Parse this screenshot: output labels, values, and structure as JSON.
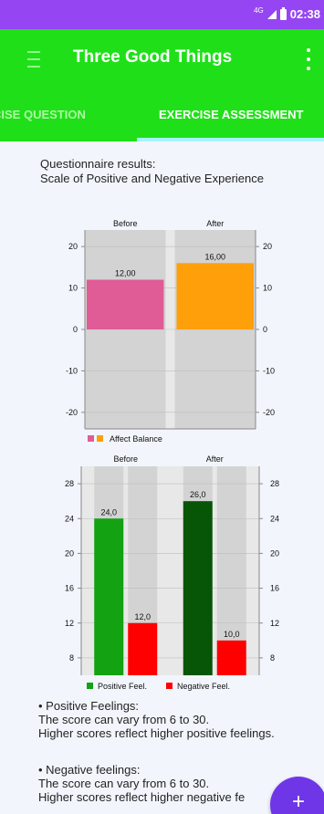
{
  "status_bar": {
    "network": "4G",
    "time": "02:38",
    "icons": [
      "signal-icon",
      "battery-icon"
    ]
  },
  "app_bar": {
    "title": "Three Good Things",
    "menu_icon": "menu-icon",
    "overflow_icon": "more-vert-icon"
  },
  "tabs": [
    {
      "label": "EXERCISE QUESTION",
      "shown_label": "CISE QUESTION",
      "active": false
    },
    {
      "label": "EXERCISE ASSESSMENT",
      "active": true
    }
  ],
  "heading": {
    "line1": "Questionnaire results:",
    "line2": "Scale of Positive and Negative Experience"
  },
  "chart_data": [
    {
      "type": "bar",
      "categories": [
        "Before",
        "After"
      ],
      "series": [
        {
          "name": "Affect Balance",
          "values": [
            12.0,
            16.0
          ],
          "colors": [
            "#e05c96",
            "#ff9f0a"
          ]
        }
      ],
      "value_labels": [
        "12,00",
        "16,00"
      ],
      "ylim": [
        -24,
        24
      ],
      "yticks": [
        -20,
        -10,
        0,
        10,
        20
      ],
      "grid": true,
      "legend": "bottom-left"
    },
    {
      "type": "bar",
      "categories": [
        "Before",
        "After"
      ],
      "series": [
        {
          "name": "Positive Feel.",
          "values": [
            24.0,
            26.0
          ],
          "colors": [
            "#12a212",
            "#075507"
          ]
        },
        {
          "name": "Negative Feel.",
          "values": [
            12.0,
            10.0
          ],
          "colors": [
            "#ff0000",
            "#ff0000"
          ]
        }
      ],
      "value_labels": [
        [
          "24,0",
          "26,0"
        ],
        [
          "12,0",
          "10,0"
        ]
      ],
      "ylim": [
        6,
        30
      ],
      "yticks": [
        8,
        12,
        16,
        20,
        24,
        28
      ],
      "grid": true,
      "legend": "bottom-center"
    }
  ],
  "descriptions": {
    "positive": {
      "title": "• Positive Feelings:",
      "line1": "The score can vary from 6 to 30.",
      "line2": "Higher scores  reflect higher positive feelings."
    },
    "negative": {
      "title": "•  Negative feelings:",
      "line1": "The score can vary from 6 to 30.",
      "line2": "Higher scores  reflect higher negative fe"
    }
  },
  "fab": {
    "label": "+",
    "icon": "add-icon"
  }
}
